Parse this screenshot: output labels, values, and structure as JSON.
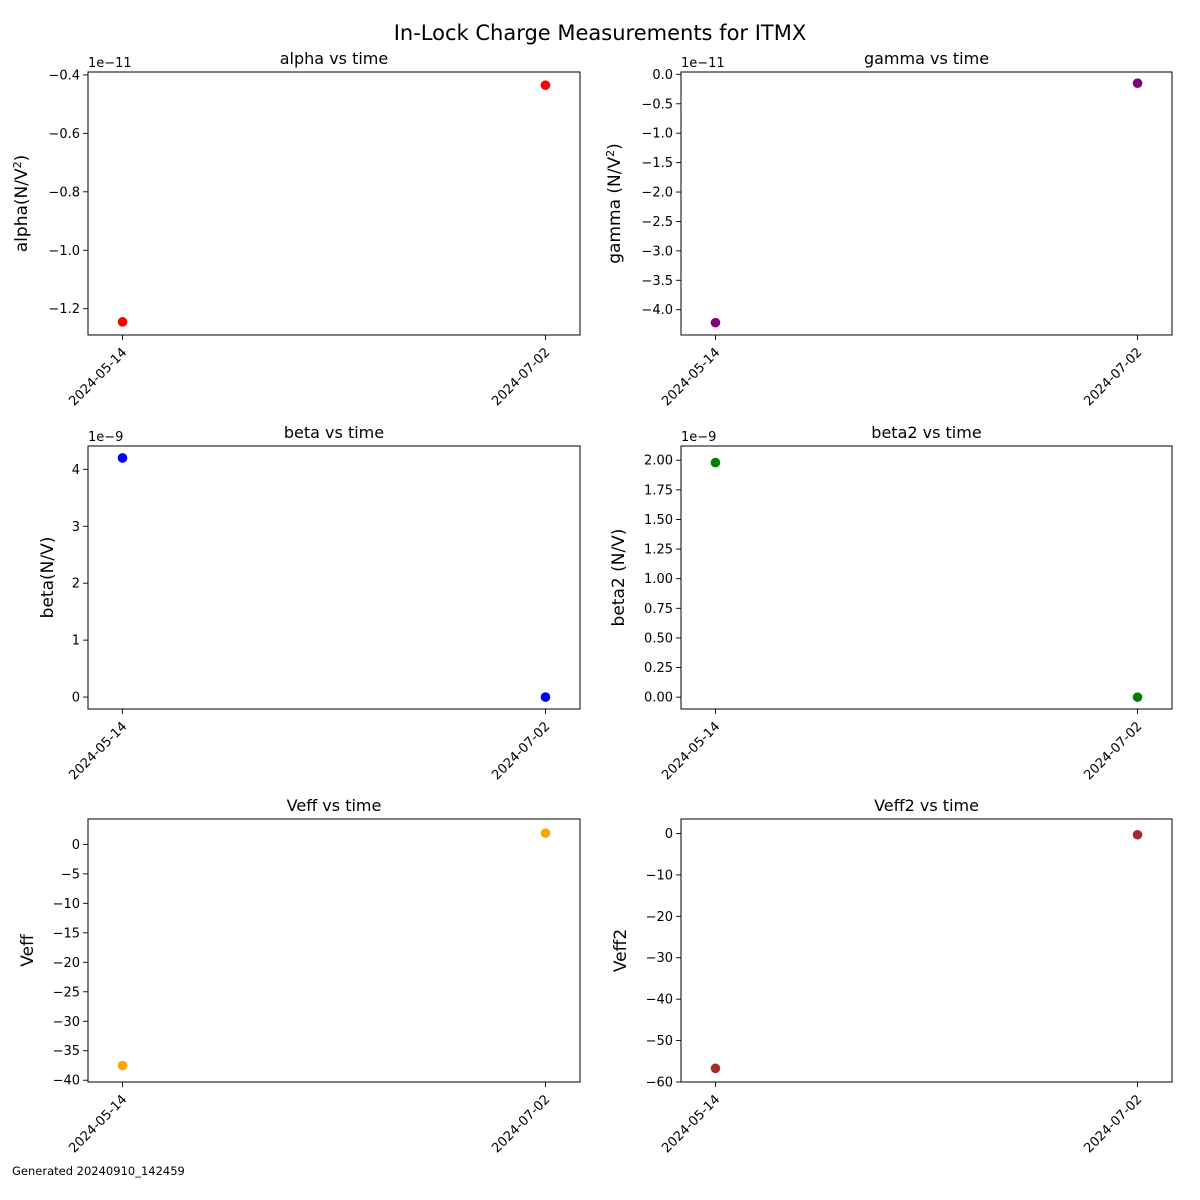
{
  "figure": {
    "title": "In-Lock Charge Measurements for ITMX",
    "footer": "Generated 20240910_142459"
  },
  "chart_data": [
    {
      "type": "scatter",
      "title": "alpha vs time",
      "xlabel": "",
      "ylabel": "alpha(N/V²)",
      "ylabel_base": "alpha(N/V",
      "ylabel_sup": "2",
      "ylabel_end": ")",
      "x": [
        "2024-05-14",
        "2024-07-02"
      ],
      "y": [
        -1.245e-11,
        -4.35e-12
      ],
      "xlim": [
        "2024-05-10",
        "2024-07-06"
      ],
      "ylim": [
        -1.29e-11,
        -3.9e-12
      ],
      "yticks": [
        -1.2e-11,
        -1e-11,
        -8e-12,
        -6e-12,
        -4e-12
      ],
      "ytick_labels": [
        "−1.2",
        "−1.0",
        "−0.8",
        "−0.6",
        "−0.4"
      ],
      "offset_text": "1e−11",
      "color": "#ff0000"
    },
    {
      "type": "scatter",
      "title": "gamma vs time",
      "xlabel": "",
      "ylabel": "gamma (N/V²)",
      "ylabel_base": "gamma (N/V",
      "ylabel_sup": "2",
      "ylabel_end": ")",
      "x": [
        "2024-05-14",
        "2024-07-02"
      ],
      "y": [
        -4.22e-11,
        -1.5e-12
      ],
      "xlim": [
        "2024-05-10",
        "2024-07-06"
      ],
      "ylim": [
        -4.43e-11,
        4e-13
      ],
      "yticks": [
        -4e-11,
        -3.5e-11,
        -3e-11,
        -2.5e-11,
        -2e-11,
        -1.5e-11,
        -1e-11,
        -5e-12,
        0
      ],
      "ytick_labels": [
        "−4.0",
        "−3.5",
        "−3.0",
        "−2.5",
        "−2.0",
        "−1.5",
        "−1.0",
        "−0.5",
        "0.0"
      ],
      "offset_text": "1e−11",
      "color": "#800080"
    },
    {
      "type": "scatter",
      "title": "beta vs time",
      "xlabel": "",
      "ylabel": "beta(N/V)",
      "x": [
        "2024-05-14",
        "2024-07-02"
      ],
      "y": [
        4.2e-09,
        0.0
      ],
      "xlim": [
        "2024-05-10",
        "2024-07-06"
      ],
      "ylim": [
        -2.1e-10,
        4.41e-09
      ],
      "yticks": [
        0,
        1e-09,
        2e-09,
        3e-09,
        4e-09
      ],
      "ytick_labels": [
        "0",
        "1",
        "2",
        "3",
        "4"
      ],
      "offset_text": "1e−9",
      "color": "#0000ff"
    },
    {
      "type": "scatter",
      "title": "beta2 vs time",
      "xlabel": "",
      "ylabel": "beta2 (N/V)",
      "x": [
        "2024-05-14",
        "2024-07-02"
      ],
      "y": [
        1.98e-09,
        0.0
      ],
      "xlim": [
        "2024-05-10",
        "2024-07-06"
      ],
      "ylim": [
        -1e-10,
        2.12e-09
      ],
      "yticks": [
        0,
        2.5e-10,
        5e-10,
        7.5e-10,
        1e-09,
        1.25e-09,
        1.5e-09,
        1.75e-09,
        2e-09
      ],
      "ytick_labels": [
        "0.00",
        "0.25",
        "0.50",
        "0.75",
        "1.00",
        "1.25",
        "1.50",
        "1.75",
        "2.00"
      ],
      "offset_text": "1e−9",
      "color": "#008000"
    },
    {
      "type": "scatter",
      "title": "Veff vs time",
      "xlabel": "",
      "ylabel": "Veff",
      "x": [
        "2024-05-14",
        "2024-07-02"
      ],
      "y": [
        -37.5,
        1.9
      ],
      "xlim": [
        "2024-05-10",
        "2024-07-06"
      ],
      "ylim": [
        -40.3,
        4.3
      ],
      "yticks": [
        -40,
        -35,
        -30,
        -25,
        -20,
        -15,
        -10,
        -5,
        0
      ],
      "ytick_labels": [
        "−40",
        "−35",
        "−30",
        "−25",
        "−20",
        "−15",
        "−10",
        "−5",
        "0"
      ],
      "offset_text": "",
      "color": "#ffa500"
    },
    {
      "type": "scatter",
      "title": "Veff2 vs time",
      "xlabel": "",
      "ylabel": "Veff2",
      "x": [
        "2024-05-14",
        "2024-07-02"
      ],
      "y": [
        -56.7,
        -0.3
      ],
      "xlim": [
        "2024-05-10",
        "2024-07-06"
      ],
      "ylim": [
        -60.0,
        3.5
      ],
      "yticks": [
        -60,
        -50,
        -40,
        -30,
        -20,
        -10,
        0
      ],
      "ytick_labels": [
        "−60",
        "−50",
        "−40",
        "−30",
        "−20",
        "−10",
        "0"
      ],
      "offset_text": "",
      "color": "#a52a2a"
    }
  ]
}
